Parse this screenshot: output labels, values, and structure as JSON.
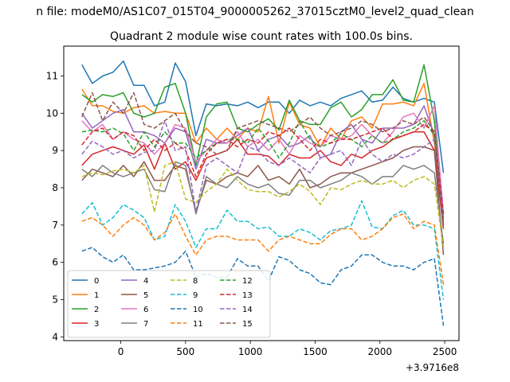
{
  "header_text": "n file: modeM0/AS1C07_015T04_9000005262_37015cztM0_level2_quad_clean",
  "chart_data": {
    "type": "line",
    "title": "Quadrant 2 module wise count rates with 100.0s bins.",
    "xlabel": "",
    "ylabel": "",
    "x_offset_label": "+3.9716e8",
    "xlim": [
      -440,
      2610
    ],
    "ylim": [
      3.9,
      11.8
    ],
    "xticks": [
      0,
      500,
      1000,
      1500,
      2000,
      2500
    ],
    "xtick_labels": [
      "0",
      "500",
      "1000",
      "1500",
      "2000",
      "2500"
    ],
    "yticks": [
      4,
      5,
      6,
      7,
      8,
      9,
      10,
      11
    ],
    "ytick_labels": [
      "4",
      "5",
      "6",
      "7",
      "8",
      "9",
      "10",
      "11"
    ],
    "grid": false,
    "legend": {
      "placement": "lower-left",
      "columns": 4
    },
    "x": [
      -300,
      -220,
      -140,
      -60,
      20,
      100,
      180,
      260,
      340,
      420,
      500,
      580,
      660,
      740,
      820,
      900,
      980,
      1060,
      1140,
      1220,
      1300,
      1380,
      1460,
      1540,
      1620,
      1700,
      1780,
      1860,
      1940,
      2020,
      2100,
      2180,
      2260,
      2340,
      2420,
      2490
    ],
    "series": [
      {
        "name": "0",
        "color": "#1f77b4",
        "dash": "solid",
        "values": [
          11.3,
          10.8,
          11.0,
          11.1,
          11.4,
          10.75,
          10.75,
          10.2,
          10.3,
          11.35,
          10.85,
          9.4,
          10.25,
          10.2,
          10.25,
          10.2,
          10.3,
          10.15,
          10.3,
          10.3,
          10.0,
          10.35,
          10.2,
          10.3,
          10.2,
          10.4,
          10.5,
          10.6,
          10.3,
          10.35,
          10.7,
          10.4,
          10.3,
          10.4,
          10.3,
          8.4
        ]
      },
      {
        "name": "1",
        "color": "#ff7f0e",
        "dash": "solid",
        "values": [
          10.65,
          10.2,
          10.2,
          10.05,
          10.0,
          10.15,
          10.2,
          10.0,
          10.05,
          10.0,
          10.0,
          9.2,
          9.6,
          9.3,
          9.6,
          9.3,
          9.6,
          9.5,
          10.45,
          9.2,
          10.3,
          9.7,
          9.6,
          9.1,
          9.6,
          9.3,
          9.8,
          9.9,
          9.6,
          10.25,
          10.25,
          10.3,
          10.2,
          10.8,
          9.2,
          7.2
        ]
      },
      {
        "name": "2",
        "color": "#2ca02c",
        "dash": "solid",
        "values": [
          10.5,
          10.3,
          10.5,
          10.45,
          10.55,
          10.0,
          9.9,
          10.0,
          10.7,
          10.8,
          10.0,
          8.6,
          9.9,
          10.25,
          10.3,
          9.6,
          9.5,
          9.7,
          9.85,
          9.55,
          10.35,
          9.8,
          9.7,
          9.7,
          10.15,
          10.3,
          9.9,
          10.1,
          10.5,
          10.5,
          10.9,
          10.35,
          10.3,
          11.3,
          9.8,
          7.0
        ]
      },
      {
        "name": "3",
        "color": "#d62728",
        "dash": "solid",
        "values": [
          8.6,
          8.9,
          9.0,
          9.1,
          9.0,
          8.9,
          9.15,
          8.5,
          9.2,
          8.5,
          8.7,
          8.2,
          8.8,
          8.9,
          9.0,
          9.3,
          8.9,
          8.9,
          8.85,
          8.6,
          8.9,
          8.8,
          8.8,
          9.0,
          8.7,
          8.6,
          8.9,
          8.8,
          9.0,
          9.1,
          9.3,
          9.4,
          9.5,
          9.5,
          9.0,
          6.9
        ]
      },
      {
        "name": "4",
        "color": "#9467bd",
        "dash": "solid",
        "values": [
          10.0,
          9.6,
          9.8,
          10.0,
          10.1,
          9.5,
          9.5,
          9.4,
          9.2,
          9.6,
          9.5,
          8.5,
          9.3,
          9.2,
          9.2,
          9.4,
          9.6,
          9.0,
          9.3,
          9.4,
          9.1,
          9.2,
          9.4,
          8.8,
          8.9,
          9.5,
          9.7,
          9.3,
          9.2,
          9.6,
          9.6,
          9.6,
          9.7,
          10.2,
          9.4,
          7.0
        ]
      },
      {
        "name": "5",
        "color": "#8c564b",
        "dash": "solid",
        "values": [
          8.2,
          8.5,
          8.4,
          8.3,
          8.6,
          8.3,
          8.7,
          8.2,
          8.2,
          8.6,
          8.5,
          7.35,
          8.2,
          8.1,
          8.3,
          8.4,
          8.3,
          8.6,
          8.2,
          8.3,
          8.1,
          8.5,
          8.0,
          8.1,
          8.3,
          8.4,
          8.4,
          8.5,
          8.6,
          8.7,
          8.8,
          9.0,
          9.1,
          9.1,
          9.0,
          6.2
        ]
      },
      {
        "name": "6",
        "color": "#e377c2",
        "dash": "solid",
        "values": [
          9.8,
          9.5,
          9.7,
          9.3,
          9.5,
          9.3,
          9.2,
          8.9,
          9.2,
          9.7,
          9.6,
          8.7,
          9.0,
          9.3,
          9.2,
          9.5,
          9.1,
          9.3,
          9.0,
          9.3,
          8.9,
          9.4,
          9.2,
          9.1,
          9.4,
          9.3,
          9.4,
          9.7,
          9.4,
          9.2,
          9.5,
          9.9,
          10.0,
          9.6,
          10.2,
          7.3
        ]
      },
      {
        "name": "7",
        "color": "#7f7f7f",
        "dash": "solid",
        "values": [
          8.5,
          8.3,
          8.6,
          8.4,
          8.3,
          8.4,
          8.5,
          7.95,
          7.9,
          8.7,
          8.6,
          7.3,
          8.3,
          8.1,
          8.0,
          8.3,
          8.1,
          8.0,
          8.1,
          7.85,
          7.8,
          8.2,
          8.2,
          8.0,
          8.1,
          8.2,
          8.4,
          8.3,
          8.1,
          8.3,
          8.3,
          8.6,
          8.5,
          8.6,
          8.4,
          6.5
        ]
      },
      {
        "name": "8",
        "color": "#bcbd22",
        "dash": "dashed",
        "values": [
          8.3,
          8.4,
          8.35,
          8.45,
          8.5,
          8.4,
          8.6,
          7.35,
          8.6,
          8.7,
          7.7,
          7.6,
          7.9,
          8.1,
          8.5,
          8.2,
          7.95,
          7.9,
          7.9,
          7.75,
          7.9,
          8.1,
          7.9,
          7.55,
          8.0,
          7.95,
          8.1,
          8.2,
          8.1,
          8.1,
          8.2,
          8.0,
          8.2,
          8.3,
          8.1,
          6.4
        ]
      },
      {
        "name": "9",
        "color": "#17becf",
        "dash": "dashed",
        "values": [
          7.3,
          7.6,
          7.0,
          7.2,
          7.55,
          7.4,
          7.2,
          6.6,
          6.7,
          7.55,
          7.1,
          6.4,
          6.9,
          6.9,
          7.4,
          7.1,
          7.1,
          6.9,
          6.95,
          6.7,
          6.7,
          6.9,
          6.8,
          6.6,
          6.85,
          6.9,
          7.0,
          7.65,
          6.95,
          6.9,
          7.25,
          7.4,
          7.0,
          7.0,
          6.9,
          5.0
        ]
      },
      {
        "name": "10",
        "color": "#1f77b4",
        "dash": "dashed",
        "values": [
          6.3,
          6.4,
          6.15,
          6.0,
          6.2,
          5.8,
          5.8,
          5.85,
          5.9,
          6.0,
          6.3,
          5.6,
          5.7,
          5.6,
          5.6,
          6.1,
          5.9,
          5.9,
          5.5,
          6.15,
          6.05,
          5.8,
          5.7,
          5.45,
          5.4,
          5.8,
          5.9,
          6.2,
          6.2,
          6.0,
          5.9,
          5.9,
          5.8,
          6.0,
          6.1,
          4.3
        ]
      },
      {
        "name": "11",
        "color": "#ff7f0e",
        "dash": "dashed",
        "values": [
          7.1,
          7.2,
          7.0,
          6.7,
          7.0,
          7.2,
          7.0,
          6.6,
          6.8,
          7.3,
          6.7,
          6.2,
          6.6,
          6.7,
          6.7,
          6.6,
          6.6,
          6.6,
          6.3,
          6.6,
          6.7,
          6.6,
          6.5,
          6.5,
          6.75,
          6.9,
          6.9,
          6.6,
          6.7,
          6.9,
          7.2,
          7.3,
          6.9,
          7.1,
          7.0,
          5.4
        ]
      },
      {
        "name": "12",
        "color": "#2ca02c",
        "dash": "dashed",
        "values": [
          9.5,
          9.55,
          9.5,
          9.6,
          9.45,
          9.0,
          9.5,
          9.1,
          9.5,
          9.2,
          9.2,
          8.8,
          9.0,
          9.2,
          9.3,
          9.3,
          9.2,
          9.6,
          9.25,
          8.8,
          9.2,
          9.8,
          9.3,
          9.1,
          9.2,
          9.45,
          9.3,
          9.1,
          9.4,
          9.2,
          9.3,
          9.5,
          9.6,
          9.8,
          9.4,
          7.1
        ]
      },
      {
        "name": "13",
        "color": "#d62728",
        "dash": "dashed",
        "values": [
          9.15,
          9.5,
          9.6,
          9.3,
          9.5,
          9.4,
          9.0,
          9.3,
          9.0,
          9.2,
          9.0,
          8.3,
          8.9,
          9.2,
          9.3,
          9.1,
          9.3,
          9.2,
          9.5,
          9.4,
          9.6,
          9.3,
          9.0,
          9.3,
          9.2,
          9.3,
          9.3,
          9.4,
          9.5,
          9.6,
          9.3,
          9.4,
          9.5,
          9.7,
          9.5,
          7.3
        ]
      },
      {
        "name": "14",
        "color": "#9467bd",
        "dash": "dashed",
        "values": [
          8.9,
          9.25,
          9.1,
          8.9,
          9.0,
          8.8,
          8.95,
          9.0,
          9.8,
          9.0,
          9.1,
          7.35,
          8.6,
          8.8,
          8.6,
          8.4,
          9.1,
          9.0,
          8.7,
          8.6,
          8.8,
          8.6,
          8.4,
          8.8,
          8.9,
          9.0,
          8.6,
          9.3,
          8.9,
          8.7,
          8.9,
          8.8,
          8.9,
          9.1,
          9.3,
          7.2
        ]
      },
      {
        "name": "15",
        "color": "#8c564b",
        "dash": "dashed",
        "values": [
          9.9,
          10.55,
          9.8,
          10.3,
          10.0,
          10.55,
          9.7,
          9.6,
          9.8,
          10.0,
          9.5,
          9.2,
          9.1,
          8.9,
          9.0,
          9.6,
          9.7,
          9.8,
          9.7,
          9.6,
          9.5,
          9.7,
          9.9,
          9.6,
          9.4,
          9.5,
          9.6,
          9.8,
          9.7,
          9.5,
          9.6,
          9.8,
          9.7,
          9.9,
          9.5,
          7.0
        ]
      }
    ]
  }
}
